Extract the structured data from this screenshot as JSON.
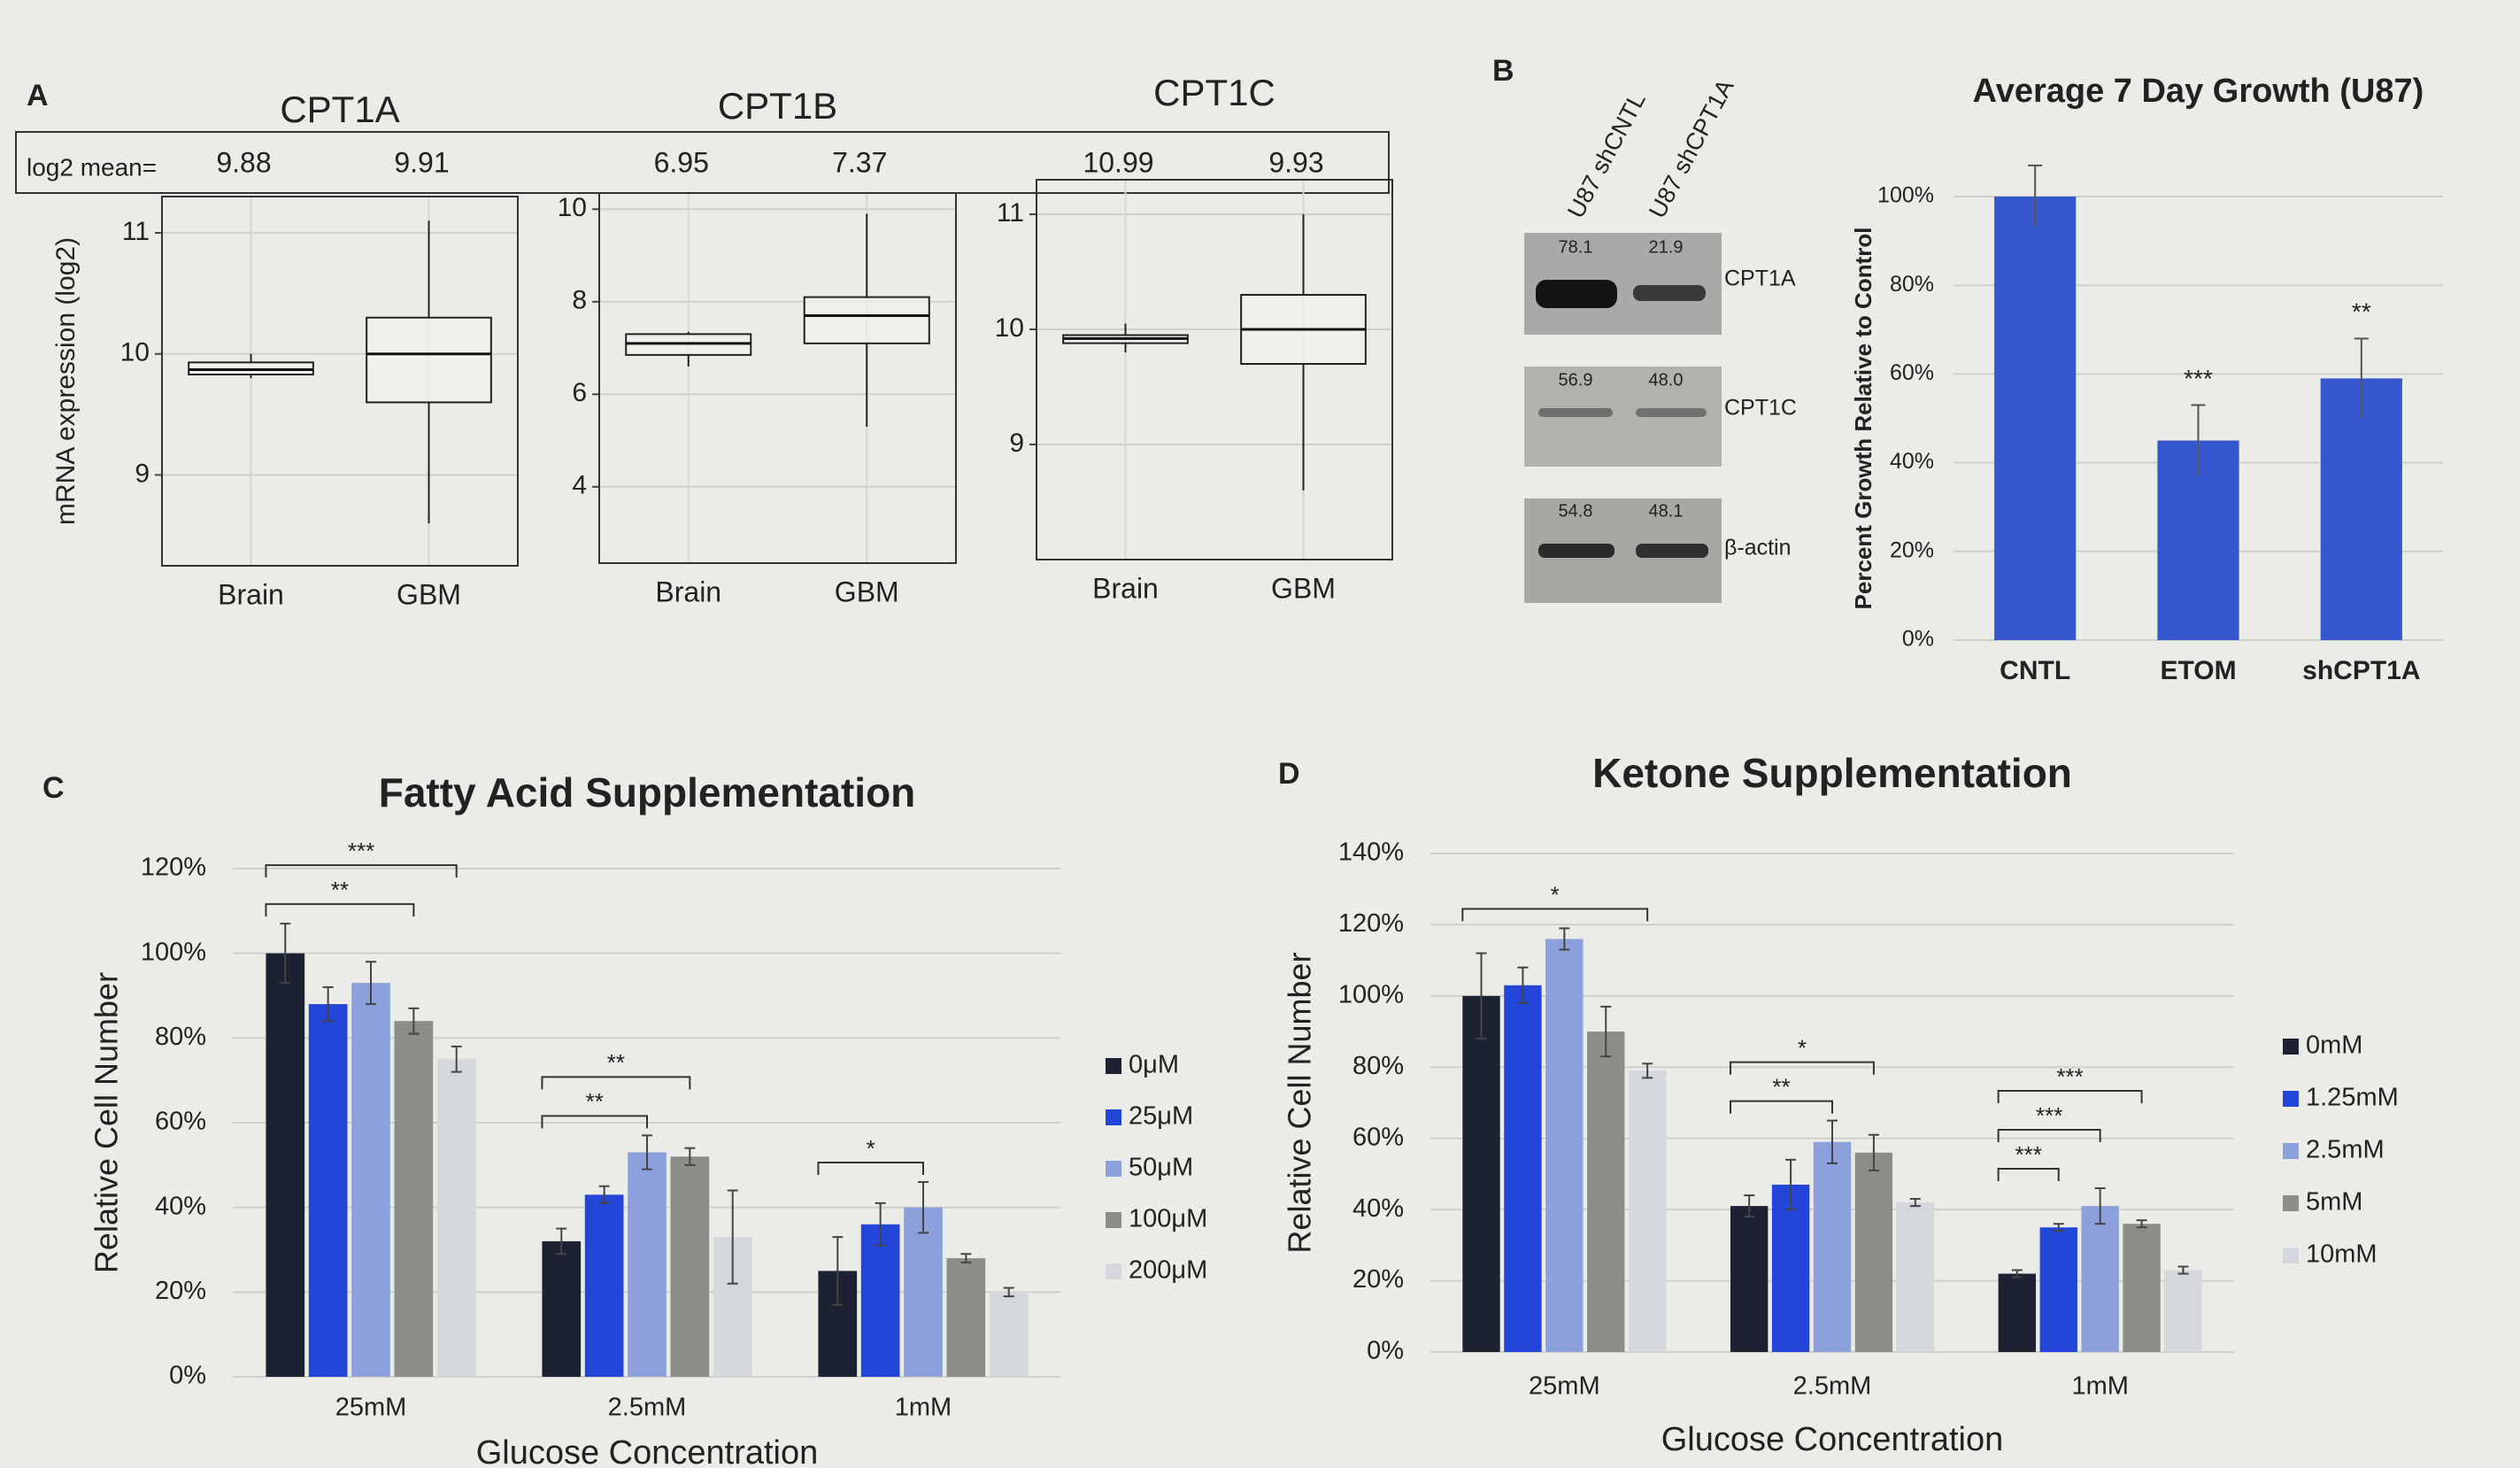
{
  "panel_labels": [
    "A",
    "B",
    "C",
    "D"
  ],
  "blot": {
    "lanes": [
      "U87 shCNTL",
      "U87 shCPT1A"
    ],
    "bands": [
      {
        "name": "CPT1A",
        "quant": [
          "78.1",
          "21.9"
        ]
      },
      {
        "name": "CPT1C",
        "quant": [
          "56.9",
          "48.0"
        ]
      },
      {
        "name": "β-actin",
        "quant": [
          "54.8",
          "48.1"
        ]
      }
    ]
  },
  "chart_data": [
    {
      "type": "box",
      "title": "CPT1A",
      "ylabel": "mRNA expression (log2)",
      "mean_label": "log2 mean=",
      "means": [
        9.88,
        9.91
      ],
      "categories": [
        "Brain",
        "GBM"
      ],
      "boxes": [
        {
          "whislo": 9.8,
          "q1": 9.83,
          "median": 9.87,
          "q3": 9.93,
          "whishi": 10.0
        },
        {
          "whislo": 8.6,
          "q1": 9.6,
          "median": 10.0,
          "q3": 10.3,
          "whishi": 11.1
        }
      ],
      "ylim": [
        8.25,
        11.3
      ],
      "yticks": [
        9,
        10,
        11
      ],
      "grid": true
    },
    {
      "type": "box",
      "title": "CPT1B",
      "means": [
        6.95,
        7.37
      ],
      "categories": [
        "Brain",
        "GBM"
      ],
      "boxes": [
        {
          "whislo": 6.6,
          "q1": 6.85,
          "median": 7.1,
          "q3": 7.3,
          "whishi": 7.35
        },
        {
          "whislo": 5.3,
          "q1": 7.1,
          "median": 7.7,
          "q3": 8.1,
          "whishi": 9.9
        }
      ],
      "ylim": [
        2.35,
        10.35
      ],
      "yticks": [
        4,
        6,
        8,
        10
      ],
      "grid": true
    },
    {
      "type": "box",
      "title": "CPT1C",
      "means": [
        10.99,
        9.93
      ],
      "categories": [
        "Brain",
        "GBM"
      ],
      "boxes": [
        {
          "whislo": 9.8,
          "q1": 9.88,
          "median": 9.92,
          "q3": 9.95,
          "whishi": 10.05
        },
        {
          "whislo": 8.6,
          "q1": 9.7,
          "median": 10.0,
          "q3": 10.3,
          "whishi": 11.0
        }
      ],
      "ylim": [
        8.0,
        11.3
      ],
      "yticks": [
        9,
        10,
        11
      ],
      "grid": true
    },
    {
      "type": "bar",
      "title": "Average 7 Day Growth (U87)",
      "ylabel": "Percent Growth Relative to Control",
      "categories": [
        "CNTL",
        "ETOM",
        "shCPT1A"
      ],
      "values": [
        100,
        45,
        59
      ],
      "errors": [
        7,
        8,
        9
      ],
      "sig_labels": [
        null,
        "***",
        "**"
      ],
      "color": "#3557d0",
      "ylim": [
        0,
        100
      ],
      "yticks": [
        {
          "value": 0,
          "label": "0%"
        },
        {
          "value": 20,
          "label": "20%"
        },
        {
          "value": 40,
          "label": "40%"
        },
        {
          "value": 60,
          "label": "60%"
        },
        {
          "value": 80,
          "label": "80%"
        },
        {
          "value": 100,
          "label": "100%"
        }
      ],
      "grid": true
    },
    {
      "type": "grouped_bar",
      "title": "Fatty Acid Supplementation",
      "xlabel": "Glucose Concentration",
      "ylabel": "Relative Cell Number",
      "categories": [
        "25mM",
        "2.5mM",
        "1mM"
      ],
      "series": [
        {
          "name": "0μM",
          "color": "#1d2233",
          "values": [
            100,
            32,
            25
          ],
          "errors": [
            7,
            3,
            8
          ]
        },
        {
          "name": "25μM",
          "color": "#2446d8",
          "values": [
            88,
            43,
            36
          ],
          "errors": [
            4,
            2,
            5
          ]
        },
        {
          "name": "50μM",
          "color": "#8ca1dc",
          "values": [
            93,
            53,
            40
          ],
          "errors": [
            5,
            4,
            6
          ]
        },
        {
          "name": "100μM",
          "color": "#8d8d88",
          "values": [
            84,
            52,
            28
          ],
          "errors": [
            3,
            2,
            1
          ]
        },
        {
          "name": "200μM",
          "color": "#d4d7db",
          "values": [
            75,
            33,
            20
          ],
          "errors": [
            3,
            11,
            1
          ]
        }
      ],
      "brackets": [
        {
          "category": 0,
          "from": 0,
          "to": 3,
          "label": "**"
        },
        {
          "category": 0,
          "from": 0,
          "to": 4,
          "label": "***"
        },
        {
          "category": 1,
          "from": 0,
          "to": 2,
          "label": "**"
        },
        {
          "category": 1,
          "from": 0,
          "to": 3,
          "label": "**"
        },
        {
          "category": 2,
          "from": 0,
          "to": 2,
          "label": "*"
        }
      ],
      "ylim": [
        0,
        120
      ],
      "yticks": [
        {
          "value": 0,
          "label": "0%"
        },
        {
          "value": 20,
          "label": "20%"
        },
        {
          "value": 40,
          "label": "40%"
        },
        {
          "value": 60,
          "label": "60%"
        },
        {
          "value": 80,
          "label": "80%"
        },
        {
          "value": 100,
          "label": "100%"
        },
        {
          "value": 120,
          "label": "120%"
        }
      ],
      "grid": true,
      "legend": "right"
    },
    {
      "type": "grouped_bar",
      "title": "Ketone Supplementation",
      "xlabel": "Glucose Concentration",
      "ylabel": "Relative Cell Number",
      "categories": [
        "25mM",
        "2.5mM",
        "1mM"
      ],
      "series": [
        {
          "name": "0mM",
          "color": "#1d2233",
          "values": [
            100,
            41,
            22
          ],
          "errors": [
            12,
            3,
            1
          ]
        },
        {
          "name": "1.25mM",
          "color": "#2446d8",
          "values": [
            103,
            47,
            35
          ],
          "errors": [
            5,
            7,
            1
          ]
        },
        {
          "name": "2.5mM",
          "color": "#8ca1dc",
          "values": [
            116,
            59,
            41
          ],
          "errors": [
            3,
            6,
            5
          ]
        },
        {
          "name": "5mM",
          "color": "#8d8d88",
          "values": [
            90,
            56,
            36
          ],
          "errors": [
            7,
            5,
            1
          ]
        },
        {
          "name": "10mM",
          "color": "#d4d7db",
          "values": [
            79,
            42,
            23
          ],
          "errors": [
            2,
            1,
            1
          ]
        }
      ],
      "brackets": [
        {
          "category": 0,
          "from": 0,
          "to": 4,
          "label": "*"
        },
        {
          "category": 1,
          "from": 0,
          "to": 2,
          "label": "**"
        },
        {
          "category": 1,
          "from": 0,
          "to": 3,
          "label": "*"
        },
        {
          "category": 2,
          "from": 0,
          "to": 1,
          "label": "***"
        },
        {
          "category": 2,
          "from": 0,
          "to": 2,
          "label": "***"
        },
        {
          "category": 2,
          "from": 0,
          "to": 3,
          "label": "***"
        }
      ],
      "ylim": [
        0,
        140
      ],
      "yticks": [
        {
          "value": 0,
          "label": "0%"
        },
        {
          "value": 20,
          "label": "20%"
        },
        {
          "value": 40,
          "label": "40%"
        },
        {
          "value": 60,
          "label": "60%"
        },
        {
          "value": 80,
          "label": "80%"
        },
        {
          "value": 100,
          "label": "100%"
        },
        {
          "value": 120,
          "label": "120%"
        },
        {
          "value": 140,
          "label": "140%"
        }
      ],
      "grid": true,
      "legend": "right"
    }
  ]
}
